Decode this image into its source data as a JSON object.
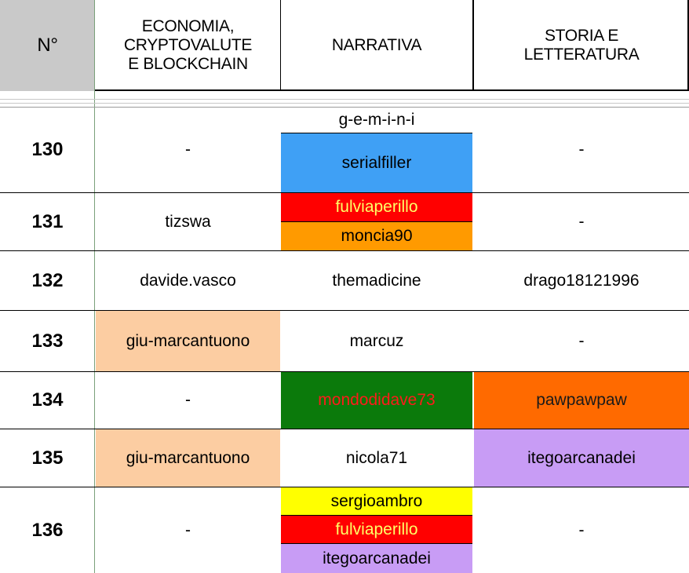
{
  "headers": {
    "num": "N°",
    "col1": "ECONOMIA, CRYPTOVALUTE E BLOCKCHAIN",
    "col1_lines": [
      "ECONOMIA,",
      "CRYPTOVALUTE",
      "E BLOCKCHAIN"
    ],
    "col2": "NARRATIVA",
    "col3": "STORIA E LETTERATURA",
    "col3_lines": [
      "STORIA E",
      "LETTERATURA"
    ]
  },
  "rows": [
    {
      "num": "130",
      "col1": "-",
      "col2": [
        {
          "text": "g-e-m-i-n-i",
          "bg": "#ffffff",
          "fg": "#000000"
        },
        {
          "text": "serialfiller",
          "bg": "#3fa0f5",
          "fg": "#000000"
        }
      ],
      "col3": "-"
    },
    {
      "num": "131",
      "col1": "tizswa",
      "col2": [
        {
          "text": "fulviaperillo",
          "bg": "#ff0000",
          "fg": "#ffff66"
        },
        {
          "text": "moncia90",
          "bg": "#ff9a00",
          "fg": "#000000"
        }
      ],
      "col3": "-"
    },
    {
      "num": "132",
      "col1": "davide.vasco",
      "col2": [
        {
          "text": "themadicine",
          "bg": "#ffffff",
          "fg": "#000000"
        }
      ],
      "col3": "drago18121996"
    },
    {
      "num": "133",
      "col1": "giu-marcantuono",
      "col1_bg": "#fccda2",
      "col2": [
        {
          "text": "marcuz",
          "bg": "#ffffff",
          "fg": "#000000"
        }
      ],
      "col3": "-"
    },
    {
      "num": "134",
      "col1": "-",
      "col2": [
        {
          "text": "mondodidave73",
          "bg": "#0b7a0b",
          "fg": "#ff1a1a"
        }
      ],
      "col3": "pawpawpaw",
      "col3_bg": "#ff6a00",
      "col3_fg": "#1a1a1a"
    },
    {
      "num": "135",
      "col1": "giu-marcantuono",
      "col1_bg": "#fccda2",
      "col2": [
        {
          "text": "nicola71",
          "bg": "#ffffff",
          "fg": "#000000"
        }
      ],
      "col3": "itegoarcanadei",
      "col3_bg": "#c89cf5"
    },
    {
      "num": "136",
      "col1": "-",
      "col2": [
        {
          "text": "sergioambro",
          "bg": "#ffff00",
          "fg": "#000000"
        },
        {
          "text": "fulviaperillo",
          "bg": "#ff0000",
          "fg": "#ffff66"
        },
        {
          "text": "itegoarcanadei",
          "bg": "#c89cf5",
          "fg": "#000000"
        }
      ],
      "col3": "-"
    }
  ],
  "colors": {
    "header_num_bg": "#c9c9c9",
    "grid_line": "#000000"
  }
}
